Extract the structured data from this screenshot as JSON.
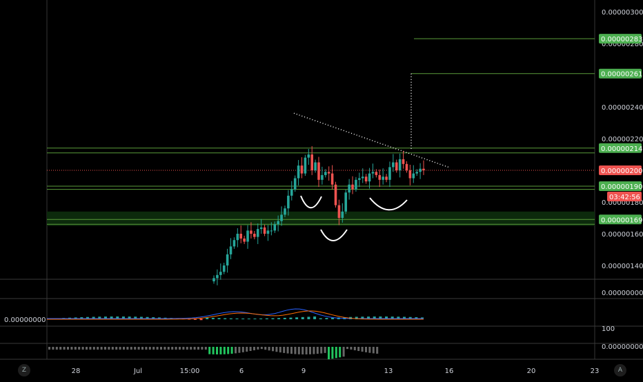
{
  "chart_data": {
    "type": "candlestick",
    "colors": {
      "up": "#26a69a",
      "down": "#ef5350",
      "level_line": "#5a9c3a",
      "level_zone": "#0c2a0c",
      "price_line": "#ef5350",
      "tag_green": "#4caf50",
      "tag_red": "#ef5350",
      "macd_line": "#2962ff",
      "signal_line": "#ff6d00",
      "pattern_curve": "#ffffff",
      "dotted": "#ffffff"
    },
    "y_axis": {
      "min": 1.3e-06,
      "max": 3.05e-06,
      "tick_labels": [
        "0.00000300",
        "0.00000280",
        "0.00000240",
        "0.00000220",
        "0.00000180",
        "0.00000160",
        "0.00000140"
      ],
      "tick_values": [
        3e-06,
        2.8e-06,
        2.4e-06,
        2.2e-06,
        1.8e-06,
        1.6e-06,
        1.4e-06
      ]
    },
    "x_axis": {
      "tick_labels": [
        "28",
        "Jul",
        "15:00",
        "6",
        "9",
        "13",
        "16",
        "20",
        "23"
      ]
    },
    "price_tags": [
      {
        "label": "0.00000283",
        "value": 2.83e-06,
        "color": "green"
      },
      {
        "label": "0.00000261",
        "value": 2.61e-06,
        "color": "green"
      },
      {
        "label": "0.00000214",
        "value": 2.14e-06,
        "color": "green"
      },
      {
        "label": "0.00000200",
        "value": 2e-06,
        "color": "red"
      },
      {
        "label": "03:42:56",
        "value": 1.9e-06,
        "color": "red"
      },
      {
        "label": "0.00000190",
        "value": 1.9e-06,
        "color": "green"
      },
      {
        "label": "0.00000169",
        "value": 1.69e-06,
        "color": "green"
      }
    ],
    "current_price": 2e-06,
    "levels": [
      2.14e-06,
      2.11e-06,
      1.9e-06,
      1.88e-06,
      1.69e-06,
      1.66e-06
    ],
    "zones": [
      [
        1.65e-06,
        1.74e-06
      ]
    ],
    "pane2_label": "0.00000000",
    "pane2_left_label": "0.00000000",
    "pane3_label": "100",
    "pane4_label": "0.00000000",
    "corner_left": "Z",
    "corner_right": "A"
  }
}
